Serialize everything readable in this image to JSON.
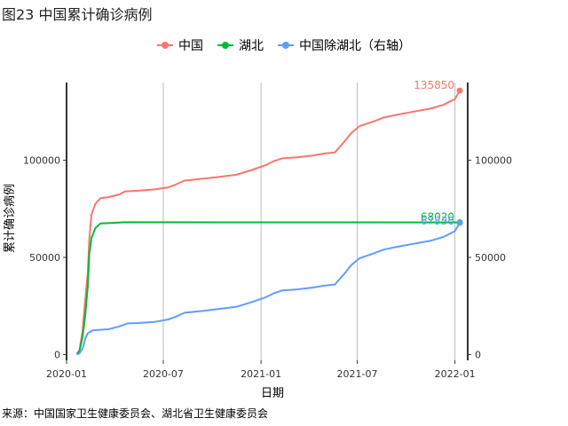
{
  "title": "图23 中国累计确诊病例",
  "source": "来源：中国国家卫生健康委员会、湖北省卫生健康委员会",
  "chart_data": {
    "type": "line",
    "title": "图23 中国累计确诊病例",
    "xlabel": "日期",
    "ylabel": "累计确诊病例",
    "x_range": [
      "2020-01-01",
      "2022-01-25"
    ],
    "x_ticks": [
      "2020-01",
      "2020-07",
      "2021-01",
      "2021-07",
      "2022-01"
    ],
    "y_left": {
      "range": [
        -3000,
        140000
      ],
      "ticks": [
        0,
        50000,
        100000
      ],
      "tick_labels": [
        "0",
        "50000",
        "100000"
      ]
    },
    "y_right": {
      "range": [
        -3000,
        140000
      ],
      "ticks": [
        0,
        50000,
        100000
      ],
      "tick_labels": [
        "0",
        "50000",
        "100000"
      ]
    },
    "grid": "vertical major lines",
    "legend_position": "top",
    "series": [
      {
        "name": "中国",
        "color": "#F8766D",
        "axis": "left",
        "end_label": "135850",
        "points": [
          [
            "2020-01-20",
            300
          ],
          [
            "2020-01-25",
            2000
          ],
          [
            "2020-01-31",
            12000
          ],
          [
            "2020-02-05",
            28000
          ],
          [
            "2020-02-10",
            42000
          ],
          [
            "2020-02-13",
            60000
          ],
          [
            "2020-02-17",
            72000
          ],
          [
            "2020-02-24",
            77500
          ],
          [
            "2020-03-05",
            80500
          ],
          [
            "2020-03-20",
            81000
          ],
          [
            "2020-04-10",
            82500
          ],
          [
            "2020-04-20",
            84000
          ],
          [
            "2020-05-15",
            84300
          ],
          [
            "2020-06-15",
            85000
          ],
          [
            "2020-07-10",
            86000
          ],
          [
            "2020-07-25",
            87500
          ],
          [
            "2020-08-10",
            89500
          ],
          [
            "2020-09-15",
            90500
          ],
          [
            "2020-10-15",
            91500
          ],
          [
            "2020-11-15",
            92500
          ],
          [
            "2020-12-15",
            95000
          ],
          [
            "2021-01-10",
            97500
          ],
          [
            "2021-01-25",
            99500
          ],
          [
            "2021-02-10",
            101000
          ],
          [
            "2021-03-10",
            101500
          ],
          [
            "2021-04-10",
            102500
          ],
          [
            "2021-05-01",
            103500
          ],
          [
            "2021-05-20",
            104000
          ],
          [
            "2021-06-05",
            109000
          ],
          [
            "2021-06-20",
            114000
          ],
          [
            "2021-07-05",
            117500
          ],
          [
            "2021-08-01",
            120000
          ],
          [
            "2021-08-20",
            122000
          ],
          [
            "2021-09-15",
            123500
          ],
          [
            "2021-10-15",
            125000
          ],
          [
            "2021-11-15",
            126500
          ],
          [
            "2021-12-10",
            128500
          ],
          [
            "2022-01-01",
            131500
          ],
          [
            "2022-01-10",
            135850
          ]
        ]
      },
      {
        "name": "湖北",
        "color": "#00BA38",
        "axis": "left",
        "end_label": "68020",
        "points": [
          [
            "2020-01-20",
            270
          ],
          [
            "2020-01-25",
            1500
          ],
          [
            "2020-01-31",
            9000
          ],
          [
            "2020-02-05",
            20000
          ],
          [
            "2020-02-10",
            35000
          ],
          [
            "2020-02-13",
            52000
          ],
          [
            "2020-02-17",
            60000
          ],
          [
            "2020-02-24",
            65000
          ],
          [
            "2020-03-05",
            67500
          ],
          [
            "2020-04-01",
            67800
          ],
          [
            "2020-04-20",
            68100
          ],
          [
            "2022-01-10",
            68020
          ]
        ]
      },
      {
        "name": "中国除湖北（右轴）",
        "color": "#619CFF",
        "axis": "right",
        "end_label": "67830",
        "points": [
          [
            "2020-01-20",
            30
          ],
          [
            "2020-01-25",
            500
          ],
          [
            "2020-01-31",
            3000
          ],
          [
            "2020-02-05",
            8000
          ],
          [
            "2020-02-10",
            11000
          ],
          [
            "2020-02-20",
            12500
          ],
          [
            "2020-03-20",
            13000
          ],
          [
            "2020-04-10",
            14500
          ],
          [
            "2020-04-25",
            16000
          ],
          [
            "2020-05-15",
            16200
          ],
          [
            "2020-06-15",
            16800
          ],
          [
            "2020-07-10",
            18000
          ],
          [
            "2020-07-25",
            19500
          ],
          [
            "2020-08-10",
            21500
          ],
          [
            "2020-09-15",
            22500
          ],
          [
            "2020-10-15",
            23500
          ],
          [
            "2020-11-15",
            24500
          ],
          [
            "2020-12-15",
            27000
          ],
          [
            "2021-01-10",
            29500
          ],
          [
            "2021-01-25",
            31500
          ],
          [
            "2021-02-10",
            33000
          ],
          [
            "2021-03-10",
            33500
          ],
          [
            "2021-04-10",
            34500
          ],
          [
            "2021-05-01",
            35500
          ],
          [
            "2021-05-20",
            36000
          ],
          [
            "2021-06-05",
            41000
          ],
          [
            "2021-06-20",
            46000
          ],
          [
            "2021-07-05",
            49500
          ],
          [
            "2021-08-01",
            52000
          ],
          [
            "2021-08-20",
            54000
          ],
          [
            "2021-09-15",
            55500
          ],
          [
            "2021-10-15",
            57000
          ],
          [
            "2021-11-15",
            58500
          ],
          [
            "2021-12-10",
            60500
          ],
          [
            "2022-01-01",
            63500
          ],
          [
            "2022-01-10",
            67830
          ]
        ]
      }
    ]
  }
}
